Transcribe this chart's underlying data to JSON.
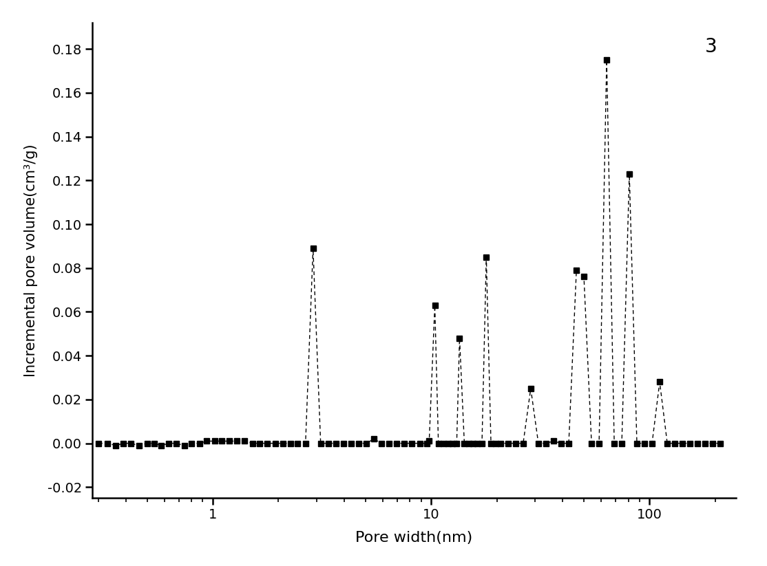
{
  "title_annotation": "3",
  "xlabel": "Pore width(nm)",
  "ylabel": "Incremental pore volume(cm³/g)",
  "background_color": "#ffffff",
  "line_color": "#000000",
  "marker_color": "#000000",
  "marker": "s",
  "marker_size": 6,
  "line_width": 1.0,
  "yticks": [
    -0.02,
    0.0,
    0.02,
    0.04,
    0.06,
    0.08,
    0.1,
    0.12,
    0.14,
    0.16,
    0.18
  ],
  "xlim": [
    0.28,
    250
  ],
  "ylim": [
    -0.025,
    0.192
  ],
  "x_values": [
    0.3,
    0.33,
    0.36,
    0.39,
    0.42,
    0.46,
    0.5,
    0.54,
    0.58,
    0.63,
    0.68,
    0.74,
    0.8,
    0.87,
    0.94,
    1.02,
    1.1,
    1.19,
    1.29,
    1.4,
    1.52,
    1.64,
    1.78,
    1.93,
    2.09,
    2.27,
    2.45,
    2.66,
    2.88,
    3.12,
    3.38,
    3.66,
    3.97,
    4.3,
    4.66,
    5.05,
    5.47,
    5.93,
    6.43,
    6.97,
    7.55,
    8.18,
    8.87,
    9.6,
    9.8,
    10.4,
    10.8,
    11.4,
    12.0,
    12.5,
    13.1,
    13.5,
    14.2,
    14.9,
    15.6,
    16.3,
    17.1,
    17.9,
    18.8,
    19.8,
    20.8,
    22.5,
    24.4,
    26.4,
    28.6,
    31.0,
    33.6,
    36.4,
    39.4,
    42.7,
    46.3,
    50.1,
    54.3,
    58.8,
    63.7,
    69.0,
    74.7,
    80.9,
    87.6,
    94.9,
    102.8,
    111.4,
    120.7,
    130.8,
    141.7,
    153.5,
    166.3,
    180.1,
    195.1,
    211.4
  ],
  "y_values": [
    0.0,
    0.0,
    -0.001,
    0.0,
    0.0,
    -0.001,
    0.0,
    0.0,
    -0.001,
    0.0,
    0.0,
    -0.001,
    0.0,
    0.0,
    0.001,
    0.001,
    0.001,
    0.001,
    0.001,
    0.001,
    0.0,
    0.0,
    0.0,
    0.0,
    0.0,
    0.0,
    0.0,
    0.0,
    0.089,
    0.0,
    0.0,
    0.0,
    0.0,
    0.0,
    0.0,
    0.0,
    0.002,
    0.0,
    0.0,
    0.0,
    0.0,
    0.0,
    0.0,
    0.0,
    0.001,
    0.063,
    0.0,
    0.0,
    0.0,
    0.0,
    0.0,
    0.048,
    0.0,
    0.0,
    0.0,
    0.0,
    0.0,
    0.085,
    0.0,
    0.0,
    0.0,
    0.0,
    0.0,
    0.0,
    0.025,
    0.0,
    0.0,
    0.001,
    0.0,
    0.0,
    0.079,
    0.076,
    0.0,
    0.0,
    0.175,
    0.0,
    0.0,
    0.123,
    0.0,
    0.0,
    0.0,
    0.028,
    0.0,
    0.0,
    0.0,
    0.0,
    0.0,
    0.0,
    0.0,
    0.0
  ]
}
